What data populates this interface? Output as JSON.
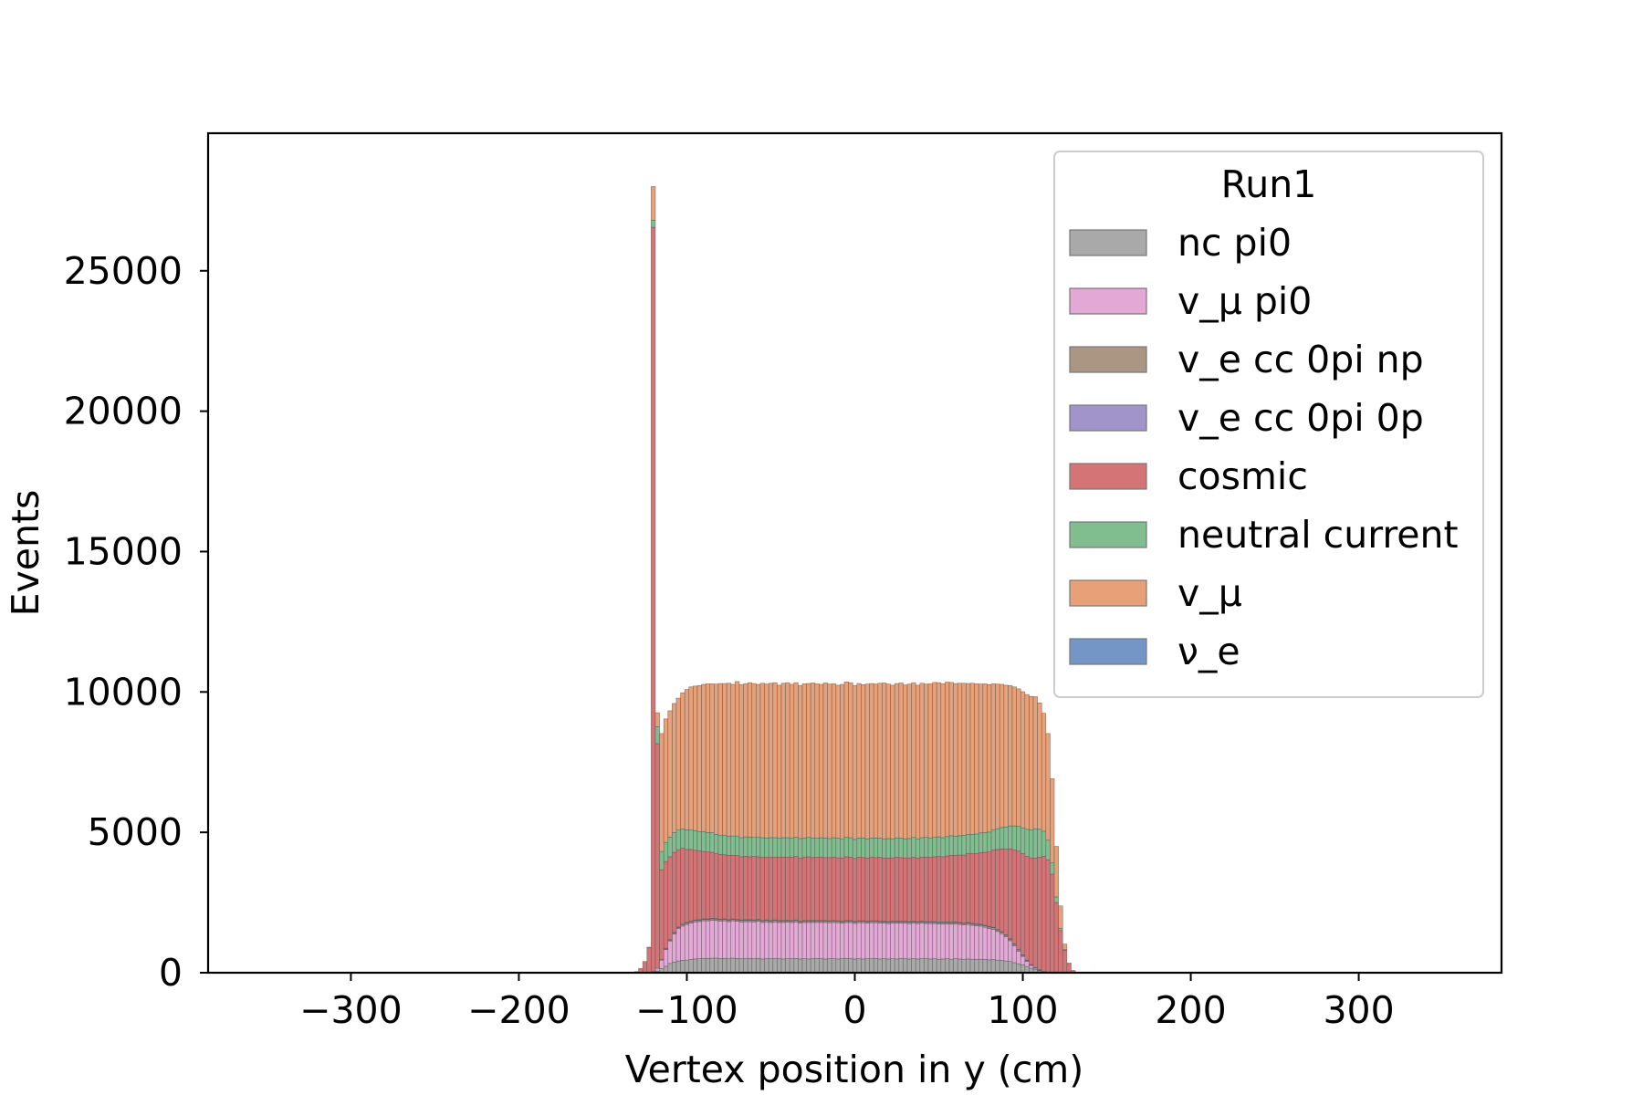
{
  "chart_data": {
    "type": "bar",
    "stacked": true,
    "histogram": true,
    "xlabel": "Vertex position in y (cm)",
    "ylabel": "Events",
    "xlim": [
      -385,
      385
    ],
    "ylim": [
      0,
      29900
    ],
    "xticks": [
      -300,
      -200,
      -100,
      0,
      100,
      200,
      300
    ],
    "xtick_labels": [
      "−300",
      "−200",
      "−100",
      "0",
      "100",
      "200",
      "300"
    ],
    "yticks": [
      0,
      5000,
      10000,
      15000,
      20000,
      25000
    ],
    "ytick_labels": [
      "0",
      "5000",
      "10000",
      "15000",
      "20000",
      "25000"
    ],
    "grid": false,
    "legend": {
      "title": "Run1",
      "placement": "top-right",
      "entries": [
        "nc pi0",
        "v_μ pi0",
        "v_e cc 0pi np",
        "v_e cc 0pi 0p",
        "cosmic",
        "neutral current",
        "v_μ",
        "ν_e"
      ]
    },
    "stack_order_bottom_to_top": [
      "ν_e",
      "nc pi0",
      "v_μ pi0",
      "v_e cc 0pi np",
      "v_e cc 0pi 0p",
      "cosmic",
      "neutral current",
      "v_μ"
    ],
    "series_colors": {
      "nc pi0": "#a9a9a9",
      "v_μ pi0": "#e4a8d6",
      "v_e cc 0pi np": "#ab9683",
      "v_e cc 0pi 0p": "#a194ca",
      "cosmic": "#d57477",
      "neutral current": "#80bd8f",
      "v_μ": "#e8a078",
      "ν_e": "#7396c7"
    },
    "bin_width": 2.5,
    "x": [
      -130,
      -127.5,
      -125,
      -122.5,
      -120,
      -117.5,
      -115,
      -112.5,
      -110,
      -107.5,
      -105,
      -102.5,
      -100,
      -97.5,
      -95,
      -92.5,
      -90,
      -87.5,
      -85,
      -82.5,
      -80,
      -77.5,
      -75,
      -72.5,
      -70,
      -67.5,
      -65,
      -62.5,
      -60,
      -57.5,
      -55,
      -52.5,
      -50,
      -47.5,
      -45,
      -42.5,
      -40,
      -37.5,
      -35,
      -32.5,
      -30,
      -27.5,
      -25,
      -22.5,
      -20,
      -17.5,
      -15,
      -12.5,
      -10,
      -7.5,
      -5,
      -2.5,
      0,
      2.5,
      5,
      7.5,
      10,
      12.5,
      15,
      17.5,
      20,
      22.5,
      25,
      27.5,
      30,
      32.5,
      35,
      37.5,
      40,
      42.5,
      45,
      47.5,
      50,
      52.5,
      55,
      57.5,
      60,
      62.5,
      65,
      67.5,
      70,
      72.5,
      75,
      77.5,
      80,
      82.5,
      85,
      87.5,
      90,
      92.5,
      95,
      97.5,
      100,
      102.5,
      105,
      107.5,
      110,
      112.5,
      115,
      117.5,
      120,
      122.5,
      125,
      127.5,
      130
    ],
    "series": [
      {
        "name": "ν_e",
        "values": [
          0,
          0,
          0,
          0,
          0,
          0,
          0,
          0,
          0,
          0,
          0,
          0,
          0,
          0,
          0,
          0,
          0,
          0,
          0,
          0,
          0,
          0,
          0,
          0,
          0,
          0,
          0,
          0,
          0,
          0,
          0,
          0,
          0,
          0,
          0,
          0,
          0,
          0,
          0,
          0,
          0,
          0,
          0,
          0,
          0,
          0,
          0,
          0,
          0,
          0,
          0,
          0,
          0,
          0,
          0,
          0,
          0,
          0,
          0,
          0,
          0,
          0,
          0,
          0,
          0,
          0,
          0,
          0,
          0,
          0,
          0,
          0,
          0,
          0,
          0,
          0,
          0,
          0,
          0,
          0,
          0,
          0,
          0,
          0,
          0,
          0,
          0,
          0,
          0,
          0,
          0,
          0,
          0,
          0,
          0,
          0,
          0,
          0,
          0,
          0,
          0,
          0,
          0,
          0,
          0
        ]
      },
      {
        "name": "nc pi0",
        "values": [
          0,
          0,
          0,
          0,
          20,
          60,
          150,
          230,
          330,
          380,
          420,
          440,
          450,
          470,
          490,
          500,
          510,
          510,
          520,
          520,
          510,
          510,
          500,
          520,
          510,
          500,
          500,
          510,
          500,
          510,
          490,
          500,
          500,
          510,
          500,
          490,
          500,
          500,
          510,
          490,
          500,
          490,
          500,
          510,
          500,
          490,
          500,
          500,
          490,
          500,
          510,
          500,
          490,
          500,
          490,
          500,
          500,
          510,
          490,
          500,
          490,
          500,
          490,
          510,
          500,
          490,
          500,
          490,
          500,
          500,
          490,
          500,
          480,
          490,
          500,
          480,
          500,
          490,
          480,
          490,
          480,
          470,
          480,
          470,
          460,
          470,
          450,
          440,
          420,
          400,
          360,
          320,
          280,
          220,
          160,
          110,
          70,
          40,
          20,
          10,
          0,
          0,
          0,
          0,
          0
        ]
      },
      {
        "name": "v_μ pi0",
        "values": [
          0,
          0,
          0,
          0,
          30,
          100,
          300,
          600,
          800,
          1000,
          1150,
          1220,
          1270,
          1300,
          1320,
          1320,
          1340,
          1340,
          1350,
          1340,
          1330,
          1340,
          1320,
          1330,
          1320,
          1310,
          1320,
          1310,
          1310,
          1320,
          1300,
          1310,
          1290,
          1300,
          1290,
          1300,
          1300,
          1290,
          1300,
          1280,
          1290,
          1300,
          1290,
          1280,
          1290,
          1300,
          1280,
          1290,
          1290,
          1270,
          1280,
          1290,
          1270,
          1280,
          1290,
          1270,
          1280,
          1270,
          1280,
          1270,
          1260,
          1270,
          1280,
          1260,
          1270,
          1260,
          1270,
          1260,
          1270,
          1250,
          1260,
          1250,
          1260,
          1250,
          1240,
          1250,
          1240,
          1230,
          1220,
          1230,
          1210,
          1200,
          1180,
          1150,
          1120,
          1080,
          1020,
          950,
          860,
          740,
          600,
          450,
          300,
          180,
          100,
          50,
          20,
          0,
          0,
          0,
          0,
          0,
          0,
          0,
          0
        ]
      },
      {
        "name": "v_e cc 0pi np",
        "values": [
          0,
          0,
          0,
          0,
          0,
          0,
          10,
          20,
          30,
          40,
          40,
          50,
          50,
          50,
          50,
          50,
          50,
          50,
          50,
          50,
          50,
          50,
          50,
          50,
          50,
          50,
          50,
          50,
          50,
          50,
          50,
          50,
          50,
          50,
          50,
          50,
          50,
          50,
          50,
          50,
          50,
          50,
          50,
          50,
          50,
          50,
          50,
          50,
          50,
          50,
          50,
          50,
          50,
          50,
          50,
          50,
          50,
          50,
          50,
          50,
          50,
          50,
          50,
          50,
          50,
          50,
          50,
          50,
          50,
          50,
          50,
          50,
          50,
          50,
          50,
          50,
          50,
          50,
          50,
          50,
          50,
          50,
          50,
          50,
          50,
          50,
          50,
          50,
          50,
          50,
          50,
          40,
          40,
          30,
          20,
          10,
          10,
          0,
          0,
          0,
          0,
          0,
          0,
          0,
          0
        ]
      },
      {
        "name": "v_e cc 0pi 0p",
        "values": [
          0,
          0,
          0,
          0,
          0,
          0,
          10,
          10,
          20,
          20,
          20,
          20,
          20,
          20,
          20,
          20,
          20,
          20,
          20,
          20,
          20,
          20,
          20,
          20,
          20,
          20,
          20,
          20,
          20,
          20,
          20,
          20,
          20,
          20,
          20,
          20,
          20,
          20,
          20,
          20,
          20,
          20,
          20,
          20,
          20,
          20,
          20,
          20,
          20,
          20,
          20,
          20,
          20,
          20,
          20,
          20,
          20,
          20,
          20,
          20,
          20,
          20,
          20,
          20,
          20,
          20,
          20,
          20,
          20,
          20,
          20,
          20,
          20,
          20,
          20,
          20,
          20,
          20,
          20,
          20,
          20,
          20,
          20,
          20,
          20,
          20,
          20,
          20,
          20,
          20,
          20,
          20,
          20,
          20,
          10,
          10,
          10,
          0,
          0,
          0,
          0,
          0,
          0,
          0,
          0
        ]
      },
      {
        "name": "cosmic",
        "values": [
          40,
          150,
          400,
          900,
          26500,
          8000,
          3200,
          3100,
          2950,
          2850,
          2750,
          2700,
          2600,
          2550,
          2480,
          2450,
          2400,
          2380,
          2350,
          2320,
          2300,
          2280,
          2290,
          2260,
          2270,
          2250,
          2260,
          2240,
          2260,
          2230,
          2250,
          2240,
          2260,
          2230,
          2250,
          2260,
          2240,
          2250,
          2260,
          2240,
          2250,
          2270,
          2240,
          2250,
          2260,
          2240,
          2250,
          2260,
          2240,
          2250,
          2270,
          2250,
          2240,
          2260,
          2250,
          2240,
          2260,
          2250,
          2270,
          2240,
          2260,
          2250,
          2270,
          2260,
          2250,
          2270,
          2280,
          2260,
          2280,
          2300,
          2290,
          2310,
          2330,
          2320,
          2350,
          2380,
          2370,
          2400,
          2420,
          2450,
          2480,
          2500,
          2550,
          2600,
          2650,
          2750,
          2850,
          2950,
          3050,
          3200,
          3350,
          3500,
          3600,
          3700,
          3800,
          3900,
          4000,
          4100,
          4000,
          3500,
          2500,
          1500,
          800,
          300,
          80
        ]
      },
      {
        "name": "neutral current",
        "values": [
          0,
          0,
          0,
          10,
          250,
          600,
          650,
          680,
          700,
          700,
          700,
          690,
          700,
          690,
          700,
          690,
          700,
          690,
          700,
          680,
          690,
          700,
          680,
          690,
          700,
          680,
          690,
          700,
          680,
          690,
          700,
          680,
          690,
          700,
          680,
          690,
          700,
          680,
          690,
          700,
          680,
          690,
          700,
          680,
          690,
          700,
          680,
          690,
          700,
          680,
          690,
          700,
          680,
          690,
          700,
          680,
          690,
          700,
          680,
          690,
          700,
          680,
          690,
          700,
          680,
          690,
          700,
          680,
          690,
          700,
          680,
          690,
          700,
          680,
          690,
          700,
          680,
          690,
          700,
          680,
          690,
          700,
          700,
          700,
          710,
          720,
          740,
          760,
          790,
          820,
          850,
          880,
          920,
          960,
          1000,
          1050,
          1000,
          900,
          700,
          400,
          200,
          80,
          20,
          0,
          0
        ]
      },
      {
        "name": "v_μ",
        "values": [
          0,
          0,
          0,
          0,
          1200,
          500,
          4200,
          4400,
          4500,
          4600,
          4700,
          4850,
          5000,
          5100,
          5150,
          5200,
          5250,
          5300,
          5300,
          5350,
          5400,
          5400,
          5450,
          5400,
          5500,
          5450,
          5450,
          5500,
          5480,
          5450,
          5500,
          5480,
          5500,
          5520,
          5450,
          5500,
          5520,
          5480,
          5500,
          5450,
          5500,
          5480,
          5520,
          5500,
          5460,
          5520,
          5500,
          5480,
          5450,
          5500,
          5540,
          5520,
          5480,
          5500,
          5460,
          5520,
          5500,
          5480,
          5520,
          5550,
          5500,
          5470,
          5500,
          5520,
          5480,
          5500,
          5510,
          5480,
          5500,
          5460,
          5500,
          5520,
          5490,
          5480,
          5500,
          5460,
          5440,
          5430,
          5420,
          5380,
          5380,
          5350,
          5300,
          5300,
          5250,
          5200,
          5150,
          5100,
          5050,
          5000,
          4950,
          4900,
          4850,
          4800,
          4750,
          4700,
          4500,
          4200,
          3800,
          3000,
          1800,
          800,
          200,
          50,
          0
        ]
      }
    ]
  }
}
